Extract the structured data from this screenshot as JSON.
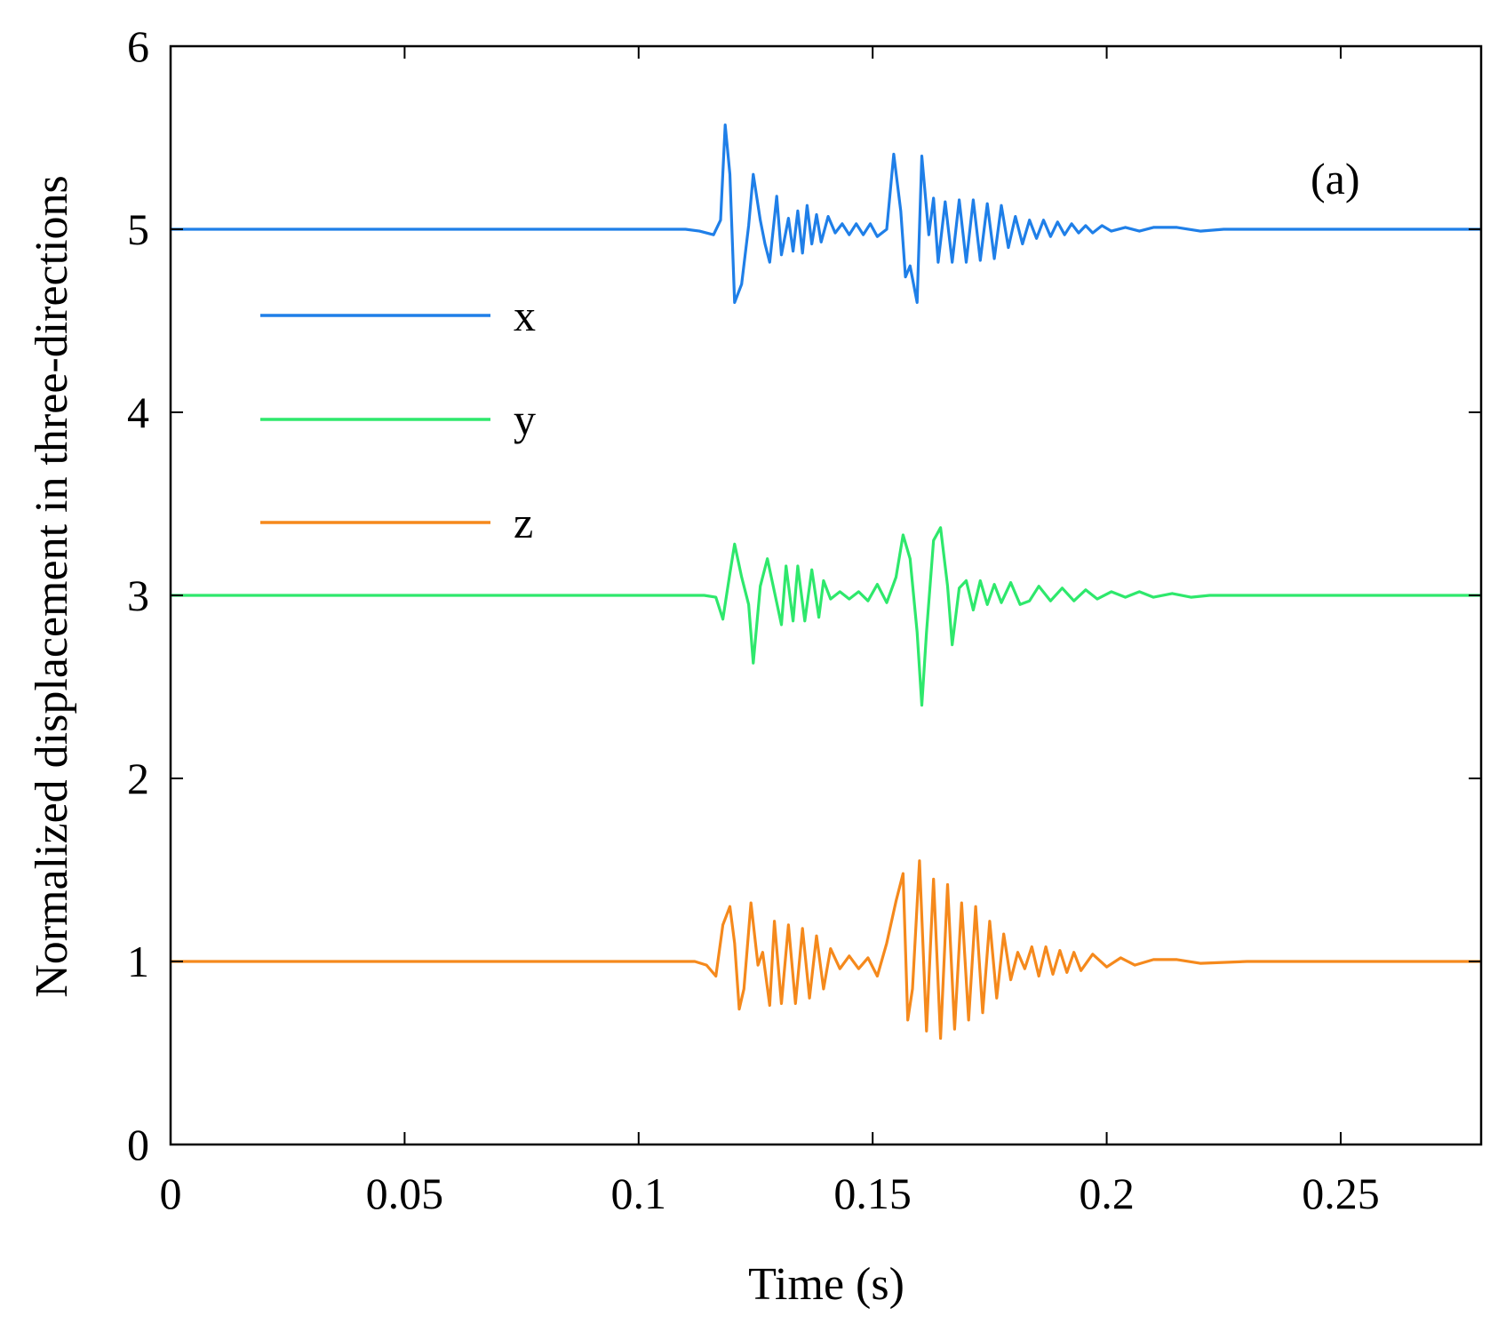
{
  "chart_data": {
    "type": "line",
    "title": "",
    "annotation": "(a)",
    "xlabel": "Time (s)",
    "ylabel": "Normalized displacement in three-directions",
    "xlim": [
      0,
      0.28
    ],
    "ylim": [
      0,
      6
    ],
    "xticks": [
      0,
      0.05,
      0.1,
      0.15,
      0.2,
      0.25
    ],
    "xtick_labels": [
      "0",
      "0.05",
      "0.1",
      "0.15",
      "0.2",
      "0.25"
    ],
    "yticks": [
      0,
      1,
      2,
      3,
      4,
      5,
      6
    ],
    "ytick_labels": [
      "0",
      "1",
      "2",
      "3",
      "4",
      "5",
      "6"
    ],
    "grid": false,
    "legend_position": "left",
    "series": [
      {
        "name": "x",
        "color": "#1f7fe8",
        "points": [
          [
            0,
            5
          ],
          [
            0.11,
            5
          ],
          [
            0.113,
            4.99
          ],
          [
            0.116,
            4.97
          ],
          [
            0.1175,
            5.05
          ],
          [
            0.1185,
            5.57
          ],
          [
            0.1195,
            5.3
          ],
          [
            0.1205,
            4.6
          ],
          [
            0.122,
            4.7
          ],
          [
            0.1235,
            5.02
          ],
          [
            0.1245,
            5.3
          ],
          [
            0.126,
            5.05
          ],
          [
            0.127,
            4.92
          ],
          [
            0.128,
            4.82
          ],
          [
            0.1295,
            5.18
          ],
          [
            0.1305,
            4.86
          ],
          [
            0.132,
            5.06
          ],
          [
            0.133,
            4.88
          ],
          [
            0.134,
            5.1
          ],
          [
            0.135,
            4.87
          ],
          [
            0.136,
            5.13
          ],
          [
            0.137,
            4.92
          ],
          [
            0.138,
            5.08
          ],
          [
            0.139,
            4.93
          ],
          [
            0.1405,
            5.07
          ],
          [
            0.142,
            4.98
          ],
          [
            0.1435,
            5.03
          ],
          [
            0.145,
            4.97
          ],
          [
            0.1465,
            5.03
          ],
          [
            0.148,
            4.97
          ],
          [
            0.1495,
            5.03
          ],
          [
            0.151,
            4.96
          ],
          [
            0.153,
            5.0
          ],
          [
            0.1545,
            5.41
          ],
          [
            0.156,
            5.1
          ],
          [
            0.157,
            4.74
          ],
          [
            0.158,
            4.8
          ],
          [
            0.1595,
            4.6
          ],
          [
            0.1605,
            5.4
          ],
          [
            0.162,
            4.97
          ],
          [
            0.163,
            5.17
          ],
          [
            0.164,
            4.82
          ],
          [
            0.1655,
            5.15
          ],
          [
            0.167,
            4.82
          ],
          [
            0.1685,
            5.16
          ],
          [
            0.17,
            4.82
          ],
          [
            0.1715,
            5.16
          ],
          [
            0.173,
            4.83
          ],
          [
            0.1745,
            5.14
          ],
          [
            0.176,
            4.84
          ],
          [
            0.1775,
            5.13
          ],
          [
            0.179,
            4.9
          ],
          [
            0.1805,
            5.07
          ],
          [
            0.182,
            4.92
          ],
          [
            0.1835,
            5.05
          ],
          [
            0.185,
            4.95
          ],
          [
            0.1865,
            5.05
          ],
          [
            0.188,
            4.96
          ],
          [
            0.1895,
            5.04
          ],
          [
            0.191,
            4.97
          ],
          [
            0.1925,
            5.03
          ],
          [
            0.194,
            4.98
          ],
          [
            0.1955,
            5.02
          ],
          [
            0.197,
            4.98
          ],
          [
            0.199,
            5.02
          ],
          [
            0.201,
            4.99
          ],
          [
            0.204,
            5.01
          ],
          [
            0.207,
            4.99
          ],
          [
            0.21,
            5.01
          ],
          [
            0.215,
            5.01
          ],
          [
            0.22,
            4.99
          ],
          [
            0.225,
            5.0
          ],
          [
            0.235,
            5.0
          ],
          [
            0.28,
            5.0
          ]
        ]
      },
      {
        "name": "y",
        "color": "#2ee86c",
        "points": [
          [
            0,
            3
          ],
          [
            0.114,
            3
          ],
          [
            0.1165,
            2.99
          ],
          [
            0.118,
            2.87
          ],
          [
            0.1195,
            3.12
          ],
          [
            0.1205,
            3.28
          ],
          [
            0.122,
            3.1
          ],
          [
            0.1235,
            2.95
          ],
          [
            0.1245,
            2.63
          ],
          [
            0.126,
            3.05
          ],
          [
            0.1275,
            3.2
          ],
          [
            0.129,
            3.02
          ],
          [
            0.1305,
            2.84
          ],
          [
            0.1315,
            3.16
          ],
          [
            0.133,
            2.86
          ],
          [
            0.134,
            3.16
          ],
          [
            0.1355,
            2.86
          ],
          [
            0.137,
            3.14
          ],
          [
            0.1385,
            2.88
          ],
          [
            0.1395,
            3.08
          ],
          [
            0.141,
            2.98
          ],
          [
            0.143,
            3.02
          ],
          [
            0.145,
            2.98
          ],
          [
            0.147,
            3.02
          ],
          [
            0.149,
            2.97
          ],
          [
            0.151,
            3.06
          ],
          [
            0.153,
            2.96
          ],
          [
            0.155,
            3.1
          ],
          [
            0.1565,
            3.33
          ],
          [
            0.158,
            3.2
          ],
          [
            0.1595,
            2.8
          ],
          [
            0.1605,
            2.4
          ],
          [
            0.1615,
            2.8
          ],
          [
            0.163,
            3.3
          ],
          [
            0.1645,
            3.37
          ],
          [
            0.166,
            3.05
          ],
          [
            0.167,
            2.73
          ],
          [
            0.1685,
            3.04
          ],
          [
            0.17,
            3.08
          ],
          [
            0.1715,
            2.92
          ],
          [
            0.173,
            3.08
          ],
          [
            0.1745,
            2.95
          ],
          [
            0.176,
            3.06
          ],
          [
            0.1775,
            2.96
          ],
          [
            0.1795,
            3.07
          ],
          [
            0.1815,
            2.95
          ],
          [
            0.1835,
            2.97
          ],
          [
            0.1855,
            3.05
          ],
          [
            0.188,
            2.97
          ],
          [
            0.1905,
            3.04
          ],
          [
            0.193,
            2.97
          ],
          [
            0.1955,
            3.03
          ],
          [
            0.198,
            2.98
          ],
          [
            0.201,
            3.02
          ],
          [
            0.204,
            2.99
          ],
          [
            0.207,
            3.02
          ],
          [
            0.21,
            2.99
          ],
          [
            0.214,
            3.01
          ],
          [
            0.218,
            2.99
          ],
          [
            0.222,
            3.0
          ],
          [
            0.28,
            3.0
          ]
        ]
      },
      {
        "name": "z",
        "color": "#f5891c",
        "points": [
          [
            0,
            1
          ],
          [
            0.112,
            1
          ],
          [
            0.1145,
            0.98
          ],
          [
            0.1165,
            0.92
          ],
          [
            0.118,
            1.2
          ],
          [
            0.1195,
            1.3
          ],
          [
            0.1205,
            1.1
          ],
          [
            0.1215,
            0.74
          ],
          [
            0.1225,
            0.85
          ],
          [
            0.124,
            1.32
          ],
          [
            0.1255,
            0.98
          ],
          [
            0.1265,
            1.05
          ],
          [
            0.128,
            0.76
          ],
          [
            0.129,
            1.22
          ],
          [
            0.1305,
            0.77
          ],
          [
            0.132,
            1.2
          ],
          [
            0.1335,
            0.77
          ],
          [
            0.135,
            1.18
          ],
          [
            0.1365,
            0.8
          ],
          [
            0.138,
            1.14
          ],
          [
            0.1395,
            0.85
          ],
          [
            0.141,
            1.07
          ],
          [
            0.143,
            0.96
          ],
          [
            0.145,
            1.03
          ],
          [
            0.147,
            0.96
          ],
          [
            0.149,
            1.02
          ],
          [
            0.151,
            0.92
          ],
          [
            0.153,
            1.1
          ],
          [
            0.155,
            1.33
          ],
          [
            0.1565,
            1.48
          ],
          [
            0.1575,
            0.68
          ],
          [
            0.1585,
            0.85
          ],
          [
            0.16,
            1.55
          ],
          [
            0.1615,
            0.62
          ],
          [
            0.163,
            1.45
          ],
          [
            0.1645,
            0.58
          ],
          [
            0.166,
            1.42
          ],
          [
            0.1675,
            0.63
          ],
          [
            0.169,
            1.32
          ],
          [
            0.1705,
            0.68
          ],
          [
            0.172,
            1.3
          ],
          [
            0.1735,
            0.72
          ],
          [
            0.175,
            1.22
          ],
          [
            0.1765,
            0.8
          ],
          [
            0.178,
            1.15
          ],
          [
            0.1795,
            0.9
          ],
          [
            0.181,
            1.05
          ],
          [
            0.1825,
            0.96
          ],
          [
            0.184,
            1.08
          ],
          [
            0.1855,
            0.92
          ],
          [
            0.187,
            1.08
          ],
          [
            0.1885,
            0.93
          ],
          [
            0.19,
            1.06
          ],
          [
            0.1915,
            0.94
          ],
          [
            0.193,
            1.05
          ],
          [
            0.1945,
            0.95
          ],
          [
            0.197,
            1.04
          ],
          [
            0.2,
            0.97
          ],
          [
            0.203,
            1.02
          ],
          [
            0.206,
            0.98
          ],
          [
            0.21,
            1.01
          ],
          [
            0.215,
            1.01
          ],
          [
            0.22,
            0.99
          ],
          [
            0.23,
            1.0
          ],
          [
            0.28,
            1.0
          ]
        ]
      }
    ]
  }
}
